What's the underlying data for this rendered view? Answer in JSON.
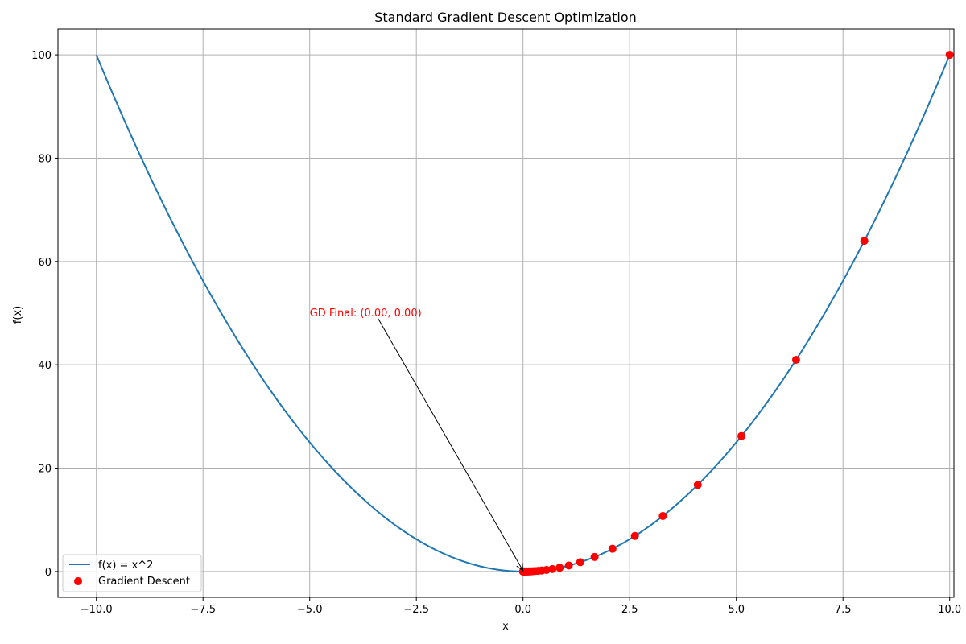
{
  "chart_data": {
    "type": "line",
    "title": "Standard Gradient Descent Optimization",
    "xlabel": "x",
    "ylabel": "f(x)",
    "xlim": [
      -10.9,
      10.1
    ],
    "ylim": [
      -5,
      105
    ],
    "xticks": [
      -10.0,
      -7.5,
      -5.0,
      -2.5,
      0.0,
      2.5,
      5.0,
      7.5,
      10.0
    ],
    "xtick_labels": [
      "−10.0",
      "−7.5",
      "−5.0",
      "−2.5",
      "0.0",
      "2.5",
      "5.0",
      "7.5",
      "10.0"
    ],
    "yticks": [
      0,
      20,
      40,
      60,
      80,
      100
    ],
    "ytick_labels": [
      "0",
      "20",
      "40",
      "60",
      "80",
      "100"
    ],
    "grid": true,
    "legend_position": "lower-left",
    "series": [
      {
        "name": "f(x) = x^2",
        "kind": "line",
        "function": "x^2",
        "x_range": [
          -10,
          10
        ],
        "color": "#1f77b4"
      },
      {
        "name": "Gradient Descent",
        "kind": "scatter",
        "color": "#ff0000",
        "x": [
          10.0,
          8.0,
          6.4,
          5.12,
          4.096,
          3.2768,
          2.62144,
          2.097152,
          1.6777216,
          1.34217728,
          1.073741824,
          0.858993459,
          0.687194767,
          0.549755814,
          0.439804651,
          0.351843721,
          0.281474977,
          0.225179981,
          0.180143985,
          0.144115188,
          0.11529215,
          0.09223372,
          0.073786976,
          0.059029581,
          0.047223665,
          0.037778932,
          0.030223145,
          0.024178516,
          0.019342813,
          0.01547425,
          0.0
        ],
        "y": [
          100.0,
          64.0,
          40.96,
          26.2144,
          16.777216,
          10.73741824,
          6.871947674,
          4.398046511,
          2.814749767,
          1.801439851,
          1.152921505,
          0.737869763,
          0.472236648,
          0.302231455,
          0.193428131,
          0.123794004,
          0.079228163,
          0.050706024,
          0.032451855,
          0.020769187,
          0.01329228,
          0.008507059,
          0.005444518,
          0.003484491,
          0.002230074,
          0.001427247,
          0.000913438,
          0.0005846,
          0.000374144,
          0.000239452,
          0.0
        ]
      }
    ],
    "annotation": {
      "text": "GD Final: (0.00, 0.00)",
      "xy": [
        0.0,
        0.0
      ],
      "xytext": [
        -5.0,
        50.0
      ],
      "color": "#ff0000"
    }
  }
}
